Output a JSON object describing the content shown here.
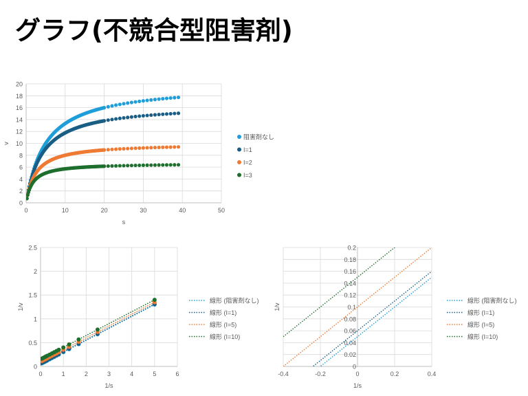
{
  "slide": {
    "title": "グラフ(不競合型阻害剤)"
  },
  "chart_data": [
    {
      "type": "scatter",
      "title": "",
      "xlabel": "s",
      "ylabel": "v",
      "xlim": [
        0,
        50
      ],
      "ylim": [
        0,
        20
      ],
      "xticks": [
        0,
        10,
        20,
        30,
        40,
        50
      ],
      "yticks": [
        0,
        2,
        4,
        6,
        8,
        10,
        12,
        14,
        16,
        18,
        20
      ],
      "grid": true,
      "legend_position": "right",
      "x_start": 0.2,
      "x_end": 39.2,
      "x_step": 0.2,
      "marker_step": 1,
      "x_dense_until": 20,
      "series": [
        {
          "name": "阻害剤なし",
          "color": "#1f9ed9",
          "vmax": 20,
          "km": 5,
          "inhibitor_factor": 1
        },
        {
          "name": "I=1",
          "color": "#1a5e85",
          "vmax": 20,
          "km": 5,
          "inhibitor_factor": 1.2
        },
        {
          "name": "I=2",
          "color": "#ee7a34",
          "vmax": 20,
          "km": 5,
          "inhibitor_factor": 2
        },
        {
          "name": "I=3",
          "color": "#1e6e2e",
          "vmax": 20,
          "km": 5,
          "inhibitor_factor": 3
        }
      ]
    },
    {
      "type": "scatter",
      "title": "",
      "xlabel": "1/s",
      "ylabel": "1/v",
      "xlim": [
        0,
        6
      ],
      "ylim": [
        0,
        2.5
      ],
      "xticks": [
        0,
        1,
        2,
        3,
        4,
        5,
        6
      ],
      "yticks": [
        0,
        0.5,
        1,
        1.5,
        2,
        2.5
      ],
      "grid": true,
      "legend_position": "right",
      "points_x": [
        0.05,
        0.1,
        0.15,
        0.2,
        0.25,
        0.3,
        0.4,
        0.5,
        0.6,
        0.7,
        0.8,
        1.0,
        1.25,
        1.67,
        2.5,
        5.0
      ],
      "series": [
        {
          "name": "線形 (阻害剤なし)",
          "color": "#1f9ed9",
          "slope": 0.25,
          "intercept": 0.05
        },
        {
          "name": "線形 (I=1)",
          "color": "#1a5e85",
          "slope": 0.25,
          "intercept": 0.06
        },
        {
          "name": "線形 (I=5)",
          "color": "#ee7a34",
          "slope": 0.25,
          "intercept": 0.1
        },
        {
          "name": "線形 (I=10)",
          "color": "#1e6e2e",
          "slope": 0.25,
          "intercept": 0.15
        }
      ]
    },
    {
      "type": "line",
      "title": "",
      "xlabel": "1/s",
      "ylabel": "1/v",
      "xlim": [
        -0.4,
        0.4
      ],
      "ylim": [
        0,
        0.2
      ],
      "xticks": [
        -0.4,
        -0.2,
        0,
        0.2,
        0.4
      ],
      "yticks": [
        0,
        0.02,
        0.04,
        0.06,
        0.08,
        0.1,
        0.12,
        0.14,
        0.16,
        0.18,
        0.2
      ],
      "grid": true,
      "legend_position": "right",
      "series": [
        {
          "name": "線形 (阻害剤なし)",
          "color": "#1f9ed9",
          "slope": 0.25,
          "intercept": 0.05
        },
        {
          "name": "線形 (I=1)",
          "color": "#1a5e85",
          "slope": 0.25,
          "intercept": 0.06
        },
        {
          "name": "線形 (I=5)",
          "color": "#ee7a34",
          "slope": 0.25,
          "intercept": 0.1
        },
        {
          "name": "線形 (I=10)",
          "color": "#1e6e2e",
          "slope": 0.25,
          "intercept": 0.15
        }
      ]
    }
  ]
}
